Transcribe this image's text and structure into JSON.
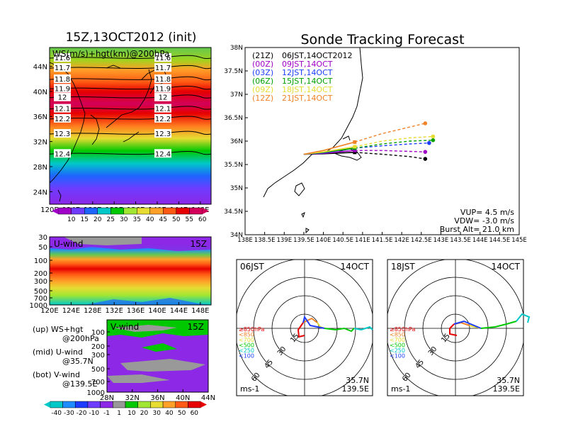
{
  "titles": {
    "left": "15Z,13OCT2012 (init)",
    "right": "Sonde Tracking Forecast"
  },
  "map": {
    "label": "WS(m/s)+hgt(km)@200hPa",
    "lat_ticks": [
      "44N",
      "40N",
      "36N",
      "32N",
      "28N",
      "24N"
    ],
    "lon_ticks": [
      "120E",
      "124E",
      "128E",
      "132E",
      "136E",
      "140E",
      "144E",
      "148E"
    ],
    "contours": [
      {
        "value": "11.6",
        "lat": 45.3
      },
      {
        "value": "11.7",
        "lat": 43.7
      },
      {
        "value": "11.8",
        "lat": 41.9
      },
      {
        "value": "11.9",
        "lat": 40.4
      },
      {
        "value": "12",
        "lat": 39.0
      },
      {
        "value": "12.1",
        "lat": 37.2
      },
      {
        "value": "12.2",
        "lat": 35.6
      },
      {
        "value": "12.3",
        "lat": 33.2
      },
      {
        "value": "12.4",
        "lat": 30.0
      }
    ]
  },
  "colorbar_top": {
    "labels": [
      "10",
      "15",
      "20",
      "25",
      "30",
      "35",
      "40",
      "45",
      "50",
      "55",
      "60"
    ]
  },
  "uwind": {
    "label": "U-wind",
    "time": "15Z",
    "p_ticks": [
      "30",
      "50",
      "100",
      "200",
      "300",
      "500",
      "700",
      "1000"
    ],
    "lon_ticks": [
      "120E",
      "124E",
      "128E",
      "132E",
      "136E",
      "140E",
      "144E",
      "148E"
    ]
  },
  "vwind": {
    "label": "V-wind",
    "time": "15Z",
    "p_ticks": [
      "100",
      "200",
      "300",
      "500",
      "700",
      "1000"
    ],
    "lat_ticks": [
      "28N",
      "32N",
      "36N",
      "40N",
      "44N"
    ]
  },
  "legend_notes": [
    {
      "line1": "(up) WS+hgt",
      "line2": "@200hPa"
    },
    {
      "line1": "(mid) U-wind",
      "line2": "@35.7N"
    },
    {
      "line1": "(bot) V-wind",
      "line2": "@139.5E"
    }
  ],
  "colorbar_bottom": {
    "labels": [
      "-40",
      "-30",
      "-20",
      "-10",
      "-1",
      "1",
      "10",
      "20",
      "30",
      "40",
      "50",
      "60"
    ]
  },
  "tracking": {
    "lat_ticks": [
      "38N",
      "37.5N",
      "37N",
      "36.5N",
      "36N",
      "35.5N",
      "35N",
      "34.5N",
      "34N"
    ],
    "lon_ticks": [
      "138E",
      "138.5E",
      "139E",
      "139.5E",
      "140E",
      "140.5E",
      "141E",
      "141.5E",
      "142E",
      "142.5E",
      "143E",
      "143.5E",
      "144E",
      "144.5E",
      "145E"
    ],
    "launches": [
      {
        "utc": "(21Z)",
        "local": "06JST,14OCT2012",
        "color": "#000000"
      },
      {
        "utc": "(00Z)",
        "local": "09JST,14OCT",
        "color": "#a000c8"
      },
      {
        "utc": "(03Z)",
        "local": "12JST,14OCT",
        "color": "#1e3cff"
      },
      {
        "utc": "(06Z)",
        "local": "15JST,14OCT",
        "color": "#00a000"
      },
      {
        "utc": "(09Z)",
        "local": "18JST,14OCT",
        "color": "#e6dc32"
      },
      {
        "utc": "(12Z)",
        "local": "21JST,14OCT",
        "color": "#f08228"
      }
    ],
    "params": {
      "vup": "VUP= 4.5 m/s",
      "vdw": "VDW= -3.0 m/s",
      "burst": "Burst Alt= 21.0 km"
    }
  },
  "chart_data": {
    "type": "line",
    "title": "Sonde Tracking Forecast",
    "xlim": [
      138,
      145
    ],
    "ylim": [
      34,
      38
    ],
    "series": [
      {
        "name": "(21Z) 06JST,14OCT2012",
        "x": [
          139.5,
          140.0,
          140.8,
          141.5,
          142.2,
          142.6
        ],
        "y": [
          35.72,
          35.73,
          35.76,
          35.72,
          35.67,
          35.62
        ]
      },
      {
        "name": "(00Z) 09JST,14OCT",
        "x": [
          139.5,
          140.0,
          140.8,
          141.5,
          142.2,
          142.6
        ],
        "y": [
          35.72,
          35.74,
          35.8,
          35.8,
          35.78,
          35.77
        ]
      },
      {
        "name": "(03Z) 12JST,14OCT",
        "x": [
          139.5,
          140.0,
          140.8,
          141.5,
          142.2,
          142.7
        ],
        "y": [
          35.72,
          35.75,
          35.85,
          35.9,
          35.94,
          35.96
        ]
      },
      {
        "name": "(06Z) 15JST,14OCT",
        "x": [
          139.5,
          140.0,
          140.8,
          141.5,
          142.2,
          142.8
        ],
        "y": [
          35.72,
          35.76,
          35.85,
          35.94,
          36.0,
          36.02
        ]
      },
      {
        "name": "(09Z) 18JST,14OCT",
        "x": [
          139.5,
          140.0,
          140.8,
          141.5,
          142.2,
          142.8
        ],
        "y": [
          35.72,
          35.77,
          35.88,
          36.0,
          36.07,
          36.1
        ]
      },
      {
        "name": "(12Z) 21JST,14OCT",
        "x": [
          139.5,
          140.0,
          140.8,
          141.5,
          142.2,
          142.6
        ],
        "y": [
          35.72,
          35.8,
          35.98,
          36.16,
          36.3,
          36.38
        ]
      }
    ]
  },
  "hodo_left": {
    "time": "06JST",
    "date": "14OCT",
    "rings": [
      "15",
      "30",
      "45",
      "60"
    ],
    "unit": "ms-1",
    "lat": "35.7N",
    "lon": "139.5E",
    "levels": [
      {
        "label": "≥850hPa",
        "color": "#e60000"
      },
      {
        "label": "<850",
        "color": "#f08228"
      },
      {
        "label": "<700",
        "color": "#e6dc32"
      },
      {
        "label": "<500",
        "color": "#00c800"
      },
      {
        "label": "<250",
        "color": "#00c8c8"
      },
      {
        "label": "<100",
        "color": "#1e3cff"
      }
    ]
  },
  "hodo_right": {
    "time": "18JST",
    "date": "14OCT",
    "rings": [
      "15",
      "30",
      "45",
      "60"
    ],
    "unit": "ms-1",
    "lat": "35.7N",
    "lon": "139.5E",
    "levels": [
      {
        "label": "≥850hPa",
        "color": "#e60000"
      },
      {
        "label": "<850",
        "color": "#f08228"
      },
      {
        "label": "<700",
        "color": "#e6dc32"
      },
      {
        "label": "<500",
        "color": "#00c800"
      },
      {
        "label": "<250",
        "color": "#00c8c8"
      },
      {
        "label": "<100",
        "color": "#1e3cff"
      }
    ]
  }
}
